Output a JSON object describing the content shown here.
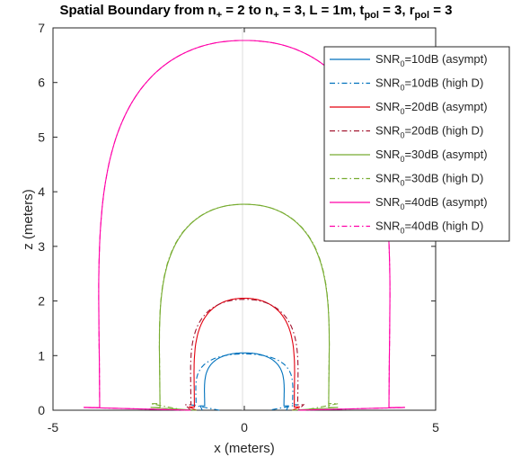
{
  "chart_data": {
    "type": "line",
    "title": {
      "prefix": "Spatial Boundary from n",
      "sub1": "+",
      "mid1": " = 2 to n",
      "sub2": "+",
      "mid2": " = 3, L = 1m, t",
      "sub3": "pol",
      "mid3": " = 3, r",
      "sub4": "pol",
      "suffix": " = 3"
    },
    "xlabel": "x (meters)",
    "ylabel": "z (meters)",
    "xlim": [
      -5,
      5
    ],
    "ylim": [
      0,
      7
    ],
    "xticks": [
      "-5",
      "0",
      "5"
    ],
    "yticks": [
      "0",
      "1",
      "2",
      "3",
      "4",
      "5",
      "6",
      "7"
    ],
    "grid": "center lines at x = 0 and z = 0 only",
    "legend_position": "top-right",
    "series": [
      {
        "name_prefix": "SNR",
        "name_sub": "0",
        "name_suffix": "=10dB (asympt)",
        "color": "#0072BD",
        "style": "solid",
        "x_inner": 1.1,
        "x_outer": 1.15,
        "z_top": 1.05,
        "z_outer": 0.08
      },
      {
        "name_prefix": "SNR",
        "name_sub": "0",
        "name_suffix": "=10dB (high D)",
        "color": "#0072BD",
        "style": "dashdot",
        "x_inner": 0.65,
        "x_outer": 1.4,
        "z_top": 1.03,
        "z_outer": 0.1
      },
      {
        "name_prefix": "SNR",
        "name_sub": "0",
        "name_suffix": "=20dB (asympt)",
        "color": "#E3000F",
        "style": "solid",
        "x_inner": 1.25,
        "x_outer": 1.45,
        "z_top": 2.05,
        "z_outer": 0.06
      },
      {
        "name_prefix": "SNR",
        "name_sub": "0",
        "name_suffix": "=20dB (high D)",
        "color": "#A2142F",
        "style": "dashdot",
        "x_inner": 1.4,
        "x_outer": 1.55,
        "z_top": 2.03,
        "z_outer": 0.1
      },
      {
        "name_prefix": "SNR",
        "name_sub": "0",
        "name_suffix": "=30dB (asympt)",
        "color": "#77AC30",
        "style": "solid",
        "x_inner": 1.25,
        "x_outer": 2.45,
        "z_top": 3.77,
        "z_outer": 0.05
      },
      {
        "name_prefix": "SNR",
        "name_sub": "0",
        "name_suffix": "=30dB (high D)",
        "color": "#77AC30",
        "style": "dashdot",
        "x_inner": 1.55,
        "x_outer": 2.45,
        "z_top": 3.77,
        "z_outer": 0.12
      },
      {
        "name_prefix": "SNR",
        "name_sub": "0",
        "name_suffix": "=40dB (asympt)",
        "color": "#FF00A8",
        "style": "solid",
        "x_inner": 1.4,
        "x_outer": 4.2,
        "z_top": 6.77,
        "z_outer": 0.05
      },
      {
        "name_prefix": "SNR",
        "name_sub": "0",
        "name_suffix": "=40dB (high D)",
        "color": "#FF00A8",
        "style": "dashdot",
        "x_inner": 1.4,
        "x_outer": 4.2,
        "z_top": 6.77,
        "z_outer": 0.05
      }
    ]
  }
}
